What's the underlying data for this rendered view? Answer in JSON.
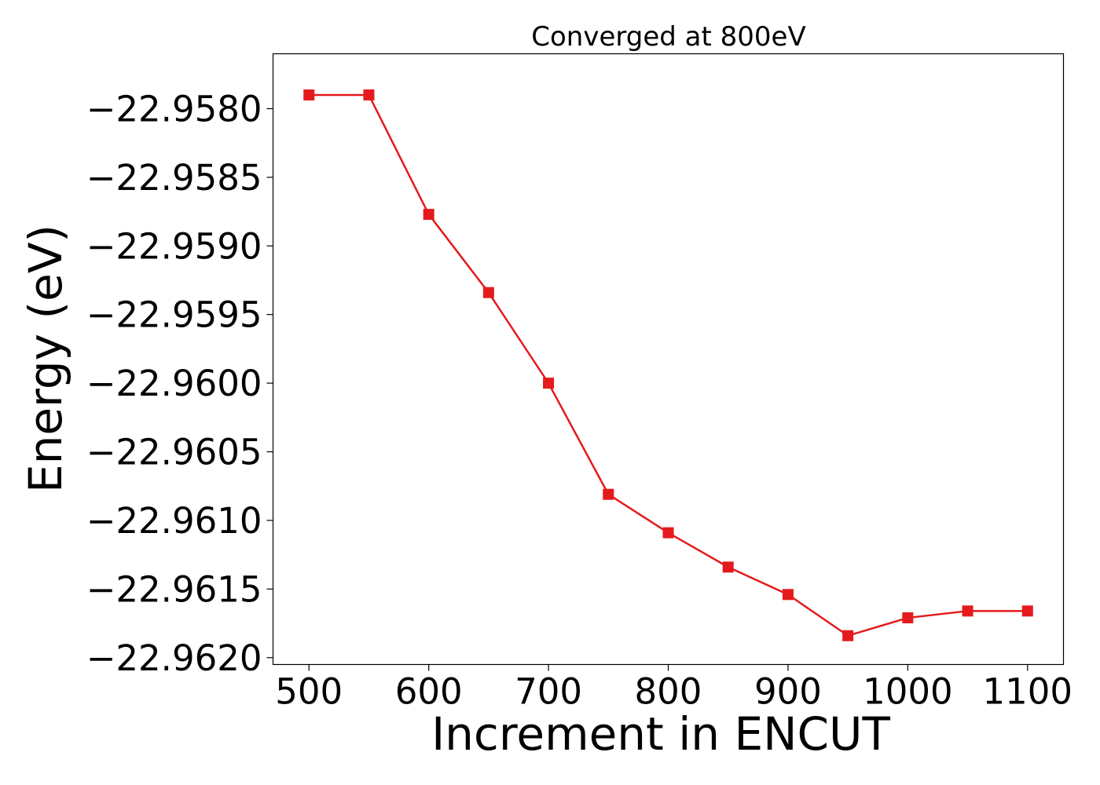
{
  "chart_data": {
    "type": "line",
    "title": "Converged at 800eV",
    "xlabel": "Increment in ENCUT",
    "ylabel": "Energy (eV)",
    "xlim": [
      470,
      1130
    ],
    "ylim": [
      -22.96205,
      -22.9576
    ],
    "x_ticks": [
      500,
      600,
      700,
      800,
      900,
      1000,
      1100
    ],
    "x_tick_labels": [
      "500",
      "600",
      "700",
      "800",
      "900",
      "1000",
      "1100"
    ],
    "y_ticks": [
      -22.958,
      -22.9585,
      -22.959,
      -22.9595,
      -22.96,
      -22.9605,
      -22.961,
      -22.9615,
      -22.962
    ],
    "y_tick_labels": [
      "−22.9580",
      "−22.9585",
      "−22.9590",
      "−22.9595",
      "−22.9600",
      "−22.9605",
      "−22.9610",
      "−22.9615",
      "−22.9620"
    ],
    "grid": false,
    "series": [
      {
        "color": "#e41a1c",
        "marker": "square",
        "x": [
          500,
          550,
          600,
          650,
          700,
          750,
          800,
          850,
          900,
          950,
          1000,
          1050,
          1100
        ],
        "y": [
          -22.9579,
          -22.9579,
          -22.95877,
          -22.95934,
          -22.96,
          -22.96081,
          -22.96109,
          -22.96134,
          -22.96154,
          -22.96184,
          -22.96171,
          -22.96166,
          -22.96166
        ]
      }
    ]
  }
}
